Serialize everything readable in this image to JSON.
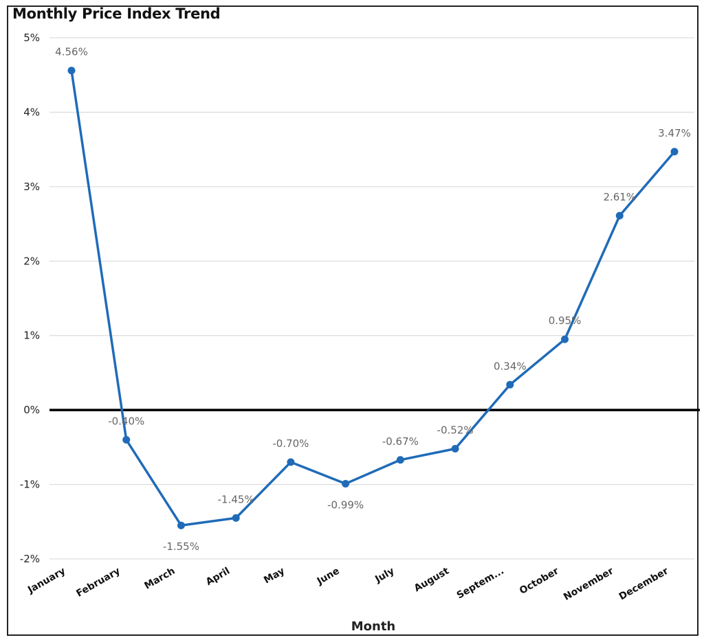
{
  "chart_data": {
    "type": "line",
    "title": "Monthly Price Index Trend",
    "xlabel": "Month",
    "ylabel": "",
    "categories": [
      "January",
      "February",
      "March",
      "April",
      "May",
      "June",
      "July",
      "August",
      "Septem...",
      "October",
      "November",
      "December"
    ],
    "values": [
      4.56,
      -0.4,
      -1.55,
      -1.45,
      -0.7,
      -0.99,
      -0.67,
      -0.52,
      0.34,
      0.95,
      2.61,
      3.47
    ],
    "data_labels": [
      "4.56%",
      "-0.40%",
      "-1.55%",
      "-1.45%",
      "-0.70%",
      "-0.99%",
      "-0.67%",
      "-0.52%",
      "0.34%",
      "0.95%",
      "2.61%",
      "3.47%"
    ],
    "ylim": [
      -2,
      5
    ],
    "yticks": [
      5,
      4,
      3,
      2,
      1,
      0,
      -1,
      -2
    ],
    "ytick_labels": [
      "5%",
      "4%",
      "3%",
      "2%",
      "1%",
      "0%",
      "-1%",
      "-2%"
    ],
    "grid": true,
    "line_color": "#1F6BB8",
    "zero_line_color": "#000000"
  }
}
